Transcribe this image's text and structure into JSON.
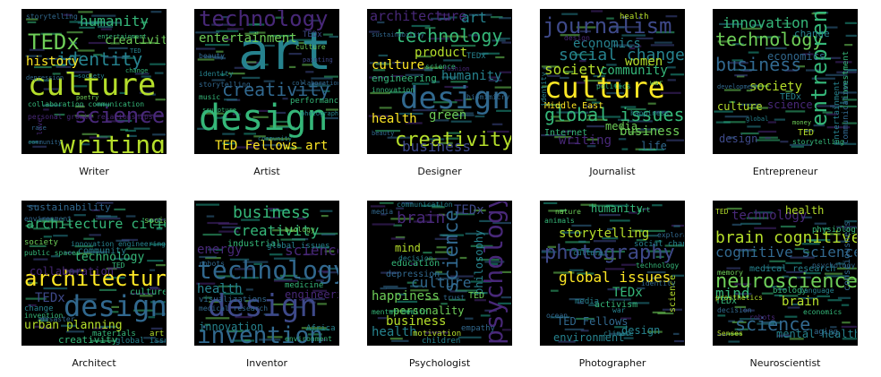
{
  "palette": [
    "#fde725",
    "#b5de2b",
    "#6ece58",
    "#35b779",
    "#1f9e89",
    "#26828e",
    "#31688e",
    "#3e4989",
    "#482878",
    "#440154"
  ],
  "panels": [
    {
      "caption": "Writer",
      "words": [
        {
          "t": "culture",
          "c": "#b5de2b"
        },
        {
          "t": "writing",
          "c": "#b5de2b"
        },
        {
          "t": "science",
          "c": "#482878"
        },
        {
          "t": "TEDx",
          "c": "#6ece58"
        },
        {
          "t": "identity",
          "c": "#26828e"
        },
        {
          "t": "humanity",
          "c": "#35b779"
        },
        {
          "t": "creativity",
          "c": "#6ece58"
        },
        {
          "t": "history",
          "c": "#fde725"
        },
        {
          "t": "collaboration communication",
          "c": "#35b779"
        },
        {
          "t": "personal growth relationships",
          "c": "#482878"
        },
        {
          "t": "storytelling",
          "c": "#31688e"
        },
        {
          "t": "entertainment",
          "c": "#35b779"
        },
        {
          "t": "community",
          "c": "#31688e"
        },
        {
          "t": "depression",
          "c": "#31688e"
        },
        {
          "t": "change",
          "c": "#35b779"
        },
        {
          "t": "society",
          "c": "#26828e"
        },
        {
          "t": "love",
          "c": "#482878"
        },
        {
          "t": "poetry",
          "c": "#6ece58"
        },
        {
          "t": "TED",
          "c": "#26828e"
        },
        {
          "t": "race",
          "c": "#31688e"
        }
      ]
    },
    {
      "caption": "Artist",
      "words": [
        {
          "t": "art",
          "c": "#26828e"
        },
        {
          "t": "design",
          "c": "#35b779"
        },
        {
          "t": "technology",
          "c": "#482878"
        },
        {
          "t": "creativity",
          "c": "#31688e"
        },
        {
          "t": "entertainment",
          "c": "#6ece58"
        },
        {
          "t": "TED Fellows art",
          "c": "#fde725"
        },
        {
          "t": "performance",
          "c": "#35b779"
        },
        {
          "t": "identity",
          "c": "#26828e"
        },
        {
          "t": "storytelling",
          "c": "#31688e"
        },
        {
          "t": "TEDx",
          "c": "#3e4989"
        },
        {
          "t": "culture",
          "c": "#6ece58"
        },
        {
          "t": "beauty",
          "c": "#31688e"
        },
        {
          "t": "photography",
          "c": "#26828e"
        },
        {
          "t": "music",
          "c": "#35b779"
        },
        {
          "t": "collaboration",
          "c": "#31688e"
        },
        {
          "t": "painting",
          "c": "#3e4989"
        },
        {
          "t": "sculpture",
          "c": "#35b779"
        },
        {
          "t": "community",
          "c": "#26828e"
        }
      ]
    },
    {
      "caption": "Designer",
      "words": [
        {
          "t": "design",
          "c": "#31688e"
        },
        {
          "t": "creativity",
          "c": "#b5de2b"
        },
        {
          "t": "technology",
          "c": "#35b779"
        },
        {
          "t": "architecture",
          "c": "#482878"
        },
        {
          "t": "art",
          "c": "#26828e"
        },
        {
          "t": "business",
          "c": "#3e4989"
        },
        {
          "t": "product",
          "c": "#b5de2b"
        },
        {
          "t": "culture",
          "c": "#fde725"
        },
        {
          "t": "humanity",
          "c": "#26828e"
        },
        {
          "t": "engineering",
          "c": "#35b779"
        },
        {
          "t": "health",
          "c": "#fde725"
        },
        {
          "t": "green",
          "c": "#6ece58"
        },
        {
          "t": "TEDx",
          "c": "#26828e"
        },
        {
          "t": "science",
          "c": "#35b779"
        },
        {
          "t": "biomimicry",
          "c": "#31688e"
        },
        {
          "t": "fashion",
          "c": "#482878"
        },
        {
          "t": "beauty",
          "c": "#31688e"
        },
        {
          "t": "innovation",
          "c": "#35b779"
        },
        {
          "t": "sustainability",
          "c": "#31688e"
        }
      ]
    },
    {
      "caption": "Journalist",
      "words": [
        {
          "t": "culture",
          "c": "#fde725"
        },
        {
          "t": "journalism",
          "c": "#3e4989"
        },
        {
          "t": "global issues",
          "c": "#35b779"
        },
        {
          "t": "social change",
          "c": "#26828e"
        },
        {
          "t": "society",
          "c": "#b5de2b"
        },
        {
          "t": "economics",
          "c": "#26828e"
        },
        {
          "t": "community",
          "c": "#35b779"
        },
        {
          "t": "writing",
          "c": "#482878"
        },
        {
          "t": "business",
          "c": "#6ece58"
        },
        {
          "t": "media",
          "c": "#6ece58"
        },
        {
          "t": "women",
          "c": "#b5de2b"
        },
        {
          "t": "Middle East",
          "c": "#fde725"
        },
        {
          "t": "Internet",
          "c": "#35b779"
        },
        {
          "t": "identity",
          "c": "#26828e"
        },
        {
          "t": "health",
          "c": "#b5de2b"
        },
        {
          "t": "life",
          "c": "#31688e"
        },
        {
          "t": "happiness",
          "c": "#26828e"
        },
        {
          "t": "design",
          "c": "#482878"
        },
        {
          "t": "politics",
          "c": "#35b779"
        },
        {
          "t": "war",
          "c": "#6ece58"
        }
      ]
    },
    {
      "caption": "Entrepreneur",
      "words": [
        {
          "t": "technology",
          "c": "#6ece58"
        },
        {
          "t": "business",
          "c": "#31688e"
        },
        {
          "t": "entrepreneur",
          "c": "#35b779"
        },
        {
          "t": "innovation",
          "c": "#35b779"
        },
        {
          "t": "society",
          "c": "#b5de2b"
        },
        {
          "t": "economics",
          "c": "#31688e"
        },
        {
          "t": "change",
          "c": "#26828e"
        },
        {
          "t": "culture",
          "c": "#b5de2b"
        },
        {
          "t": "science",
          "c": "#482878"
        },
        {
          "t": "TEDx",
          "c": "#26828e"
        },
        {
          "t": "design",
          "c": "#3e4989"
        },
        {
          "t": "investment",
          "c": "#35b779"
        },
        {
          "t": "entertainment",
          "c": "#26828e"
        },
        {
          "t": "communication",
          "c": "#31688e"
        },
        {
          "t": "storytelling",
          "c": "#35b779"
        },
        {
          "t": "TED",
          "c": "#b5de2b"
        },
        {
          "t": "money",
          "c": "#6ece58"
        },
        {
          "t": "global",
          "c": "#26828e"
        },
        {
          "t": "development",
          "c": "#31688e"
        }
      ]
    },
    {
      "caption": "Architect",
      "words": [
        {
          "t": "architecture",
          "c": "#fde725"
        },
        {
          "t": "design",
          "c": "#31688e"
        },
        {
          "t": "architecture cities",
          "c": "#35b779"
        },
        {
          "t": "technology",
          "c": "#35b779"
        },
        {
          "t": "collaboration",
          "c": "#482878"
        },
        {
          "t": "TEDx",
          "c": "#3e4989"
        },
        {
          "t": "sustainability",
          "c": "#31688e"
        },
        {
          "t": "urban planning",
          "c": "#b5de2b"
        },
        {
          "t": "creativity",
          "c": "#35b779"
        },
        {
          "t": "community",
          "c": "#26828e"
        },
        {
          "t": "society",
          "c": "#6ece58"
        },
        {
          "t": "public spaces",
          "c": "#35b779"
        },
        {
          "t": "environment",
          "c": "#31688e"
        },
        {
          "t": "innovation engineering",
          "c": "#26828e"
        },
        {
          "t": "culture",
          "c": "#35b779"
        },
        {
          "t": "change",
          "c": "#26828e"
        },
        {
          "t": "disaster",
          "c": "#31688e"
        },
        {
          "t": "materials",
          "c": "#35b779"
        },
        {
          "t": "global issues",
          "c": "#26828e"
        },
        {
          "t": "art",
          "c": "#b5de2b"
        },
        {
          "t": "social",
          "c": "#6ece58"
        },
        {
          "t": "TED",
          "c": "#35b779"
        },
        {
          "t": "invention",
          "c": "#35b779"
        }
      ]
    },
    {
      "caption": "Inventor",
      "words": [
        {
          "t": "technology",
          "c": "#31688e"
        },
        {
          "t": "design",
          "c": "#3e4989"
        },
        {
          "t": "invention",
          "c": "#31688e"
        },
        {
          "t": "business",
          "c": "#35b779"
        },
        {
          "t": "creativity",
          "c": "#35b779"
        },
        {
          "t": "science",
          "c": "#482878"
        },
        {
          "t": "energy",
          "c": "#482878"
        },
        {
          "t": "health",
          "c": "#26828e"
        },
        {
          "t": "engineering",
          "c": "#482878"
        },
        {
          "t": "innovation",
          "c": "#26828e"
        },
        {
          "t": "industrial",
          "c": "#35b779"
        },
        {
          "t": "global issues",
          "c": "#26828e"
        },
        {
          "t": "visualizations",
          "c": "#31688e"
        },
        {
          "t": "Africa",
          "c": "#26828e"
        },
        {
          "t": "medicine",
          "c": "#35b779"
        },
        {
          "t": "robots",
          "c": "#31688e"
        },
        {
          "t": "biology",
          "c": "#6ece58"
        },
        {
          "t": "environment",
          "c": "#35b779"
        },
        {
          "t": "medical research",
          "c": "#31688e"
        }
      ]
    },
    {
      "caption": "Psychologist",
      "words": [
        {
          "t": "psychology",
          "c": "#482878"
        },
        {
          "t": "science",
          "c": "#31688e"
        },
        {
          "t": "brain",
          "c": "#482878"
        },
        {
          "t": "culture",
          "c": "#31688e"
        },
        {
          "t": "happiness",
          "c": "#6ece58"
        },
        {
          "t": "business",
          "c": "#b5de2b"
        },
        {
          "t": "health",
          "c": "#26828e"
        },
        {
          "t": "mind",
          "c": "#b5de2b"
        },
        {
          "t": "education",
          "c": "#35b779"
        },
        {
          "t": "depression",
          "c": "#31688e"
        },
        {
          "t": "decision",
          "c": "#26828e"
        },
        {
          "t": "philosophy",
          "c": "#26828e"
        },
        {
          "t": "personality",
          "c": "#6ece58"
        },
        {
          "t": "mental health",
          "c": "#35b779"
        },
        {
          "t": "motivation",
          "c": "#b5de2b"
        },
        {
          "t": "children",
          "c": "#26828e"
        },
        {
          "t": "TEDx",
          "c": "#3e4989"
        },
        {
          "t": "TED",
          "c": "#6ece58"
        },
        {
          "t": "trust",
          "c": "#31688e"
        },
        {
          "t": "empathy",
          "c": "#31688e"
        },
        {
          "t": "communication",
          "c": "#26828e"
        },
        {
          "t": "media",
          "c": "#31688e"
        }
      ]
    },
    {
      "caption": "Photographer",
      "words": [
        {
          "t": "photography",
          "c": "#3e4989"
        },
        {
          "t": "global issues",
          "c": "#fde725"
        },
        {
          "t": "storytelling",
          "c": "#b5de2b"
        },
        {
          "t": "humanity",
          "c": "#35b779"
        },
        {
          "t": "TED Fellows",
          "c": "#31688e"
        },
        {
          "t": "environment",
          "c": "#26828e"
        },
        {
          "t": "design",
          "c": "#26828e"
        },
        {
          "t": "activism",
          "c": "#35b779"
        },
        {
          "t": "science",
          "c": "#b5de2b"
        },
        {
          "t": "social change",
          "c": "#26828e"
        },
        {
          "t": "media",
          "c": "#26828e"
        },
        {
          "t": "technology",
          "c": "#35b779"
        },
        {
          "t": "TEDx",
          "c": "#35b779"
        },
        {
          "t": "climate",
          "c": "#26828e"
        },
        {
          "t": "nature",
          "c": "#6ece58"
        },
        {
          "t": "war",
          "c": "#26828e"
        },
        {
          "t": "animals",
          "c": "#35b779"
        },
        {
          "t": "exploration",
          "c": "#31688e"
        },
        {
          "t": "identity",
          "c": "#31688e"
        },
        {
          "t": "culture",
          "c": "#26828e"
        },
        {
          "t": "ocean",
          "c": "#31688e"
        },
        {
          "t": "art",
          "c": "#35b779"
        }
      ]
    },
    {
      "caption": "Neuroscientist",
      "words": [
        {
          "t": "neuroscience",
          "c": "#6ece58"
        },
        {
          "t": "brain cognitive",
          "c": "#b5de2b"
        },
        {
          "t": "cognitive science",
          "c": "#31688e"
        },
        {
          "t": "science",
          "c": "#31688e"
        },
        {
          "t": "mind",
          "c": "#35b779"
        },
        {
          "t": "brain",
          "c": "#b5de2b"
        },
        {
          "t": "technology",
          "c": "#482878"
        },
        {
          "t": "mental health",
          "c": "#26828e"
        },
        {
          "t": "biology",
          "c": "#35b779"
        },
        {
          "t": "consciousness",
          "c": "#31688e"
        },
        {
          "t": "health",
          "c": "#b5de2b"
        },
        {
          "t": "medical research",
          "c": "#26828e"
        },
        {
          "t": "decision",
          "c": "#31688e"
        },
        {
          "t": "memory",
          "c": "#6ece58"
        },
        {
          "t": "TEDx",
          "c": "#35b779"
        },
        {
          "t": "language",
          "c": "#26828e"
        },
        {
          "t": "physiology",
          "c": "#35b779"
        },
        {
          "t": "prosthetics",
          "c": "#b5de2b"
        },
        {
          "t": "aging",
          "c": "#31688e"
        },
        {
          "t": "Senses",
          "c": "#b5de2b"
        },
        {
          "t": "economics",
          "c": "#35b779"
        },
        {
          "t": "robots",
          "c": "#482878"
        },
        {
          "t": "TED",
          "c": "#b5de2b"
        },
        {
          "t": "psychology",
          "c": "#31688e"
        }
      ]
    }
  ]
}
